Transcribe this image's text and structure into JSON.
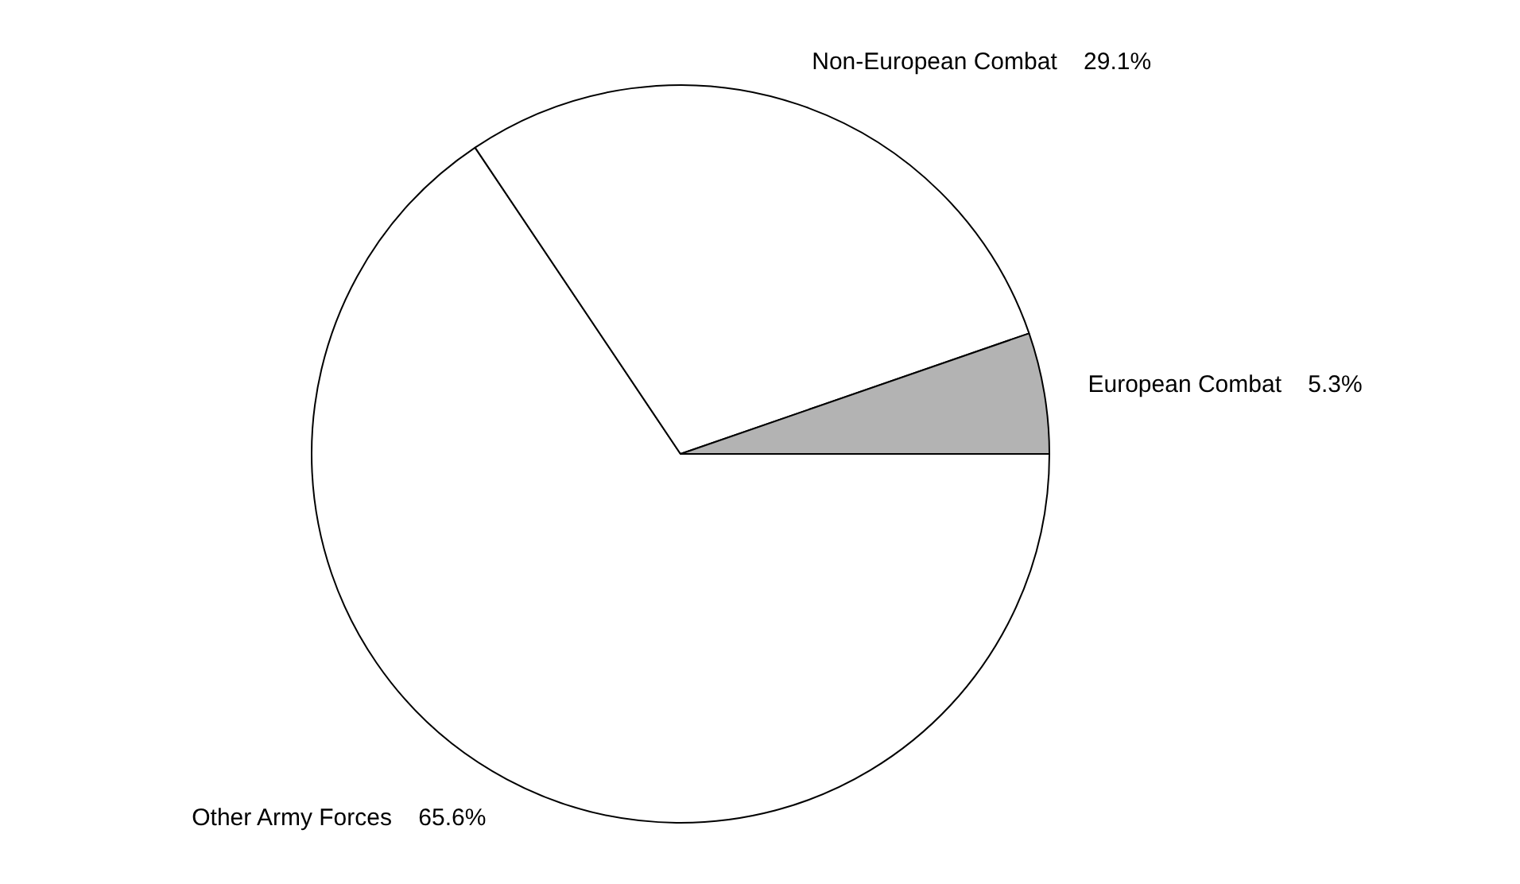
{
  "chart_data": {
    "type": "pie",
    "categories": [
      "Other Army Forces",
      "Non-European Combat",
      "European Combat"
    ],
    "values": [
      65.6,
      29.1,
      5.3
    ],
    "value_labels": [
      "65.6%",
      "29.1%",
      "5.3%"
    ],
    "colors": [
      "#ffffff",
      "#ffffff",
      "#b3b3b3"
    ],
    "legend": false
  }
}
